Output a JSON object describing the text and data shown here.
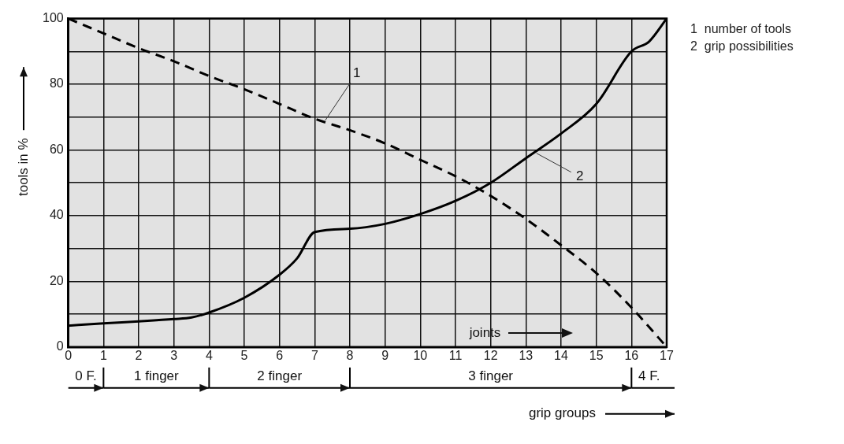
{
  "chart_data": {
    "type": "line",
    "xlabel": "grip groups",
    "ylabel": "tools in %",
    "xlim": [
      0,
      17
    ],
    "xticks": [
      0,
      1,
      2,
      3,
      4,
      5,
      6,
      7,
      8,
      9,
      10,
      11,
      12,
      13,
      14,
      15,
      16,
      17
    ],
    "ylim": [
      0,
      100
    ],
    "yticks": [
      0,
      {
        "value": 10,
        "label": null
      },
      20,
      {
        "value": 30,
        "label": null
      },
      40,
      {
        "value": 50,
        "label": null
      },
      60,
      {
        "value": 70,
        "label": null
      },
      80,
      {
        "value": 90,
        "label": null
      },
      100
    ],
    "grid": true,
    "series": [
      {
        "color": "#000000",
        "line_style": "dashed",
        "x": [
          0,
          1,
          2,
          3,
          4,
          5,
          6,
          7,
          8,
          9,
          10,
          11,
          12,
          13,
          14,
          15,
          16,
          17
        ],
        "values": [
          100,
          95.5,
          91,
          87,
          82.5,
          78.5,
          74,
          69.5,
          66,
          62,
          57,
          52,
          46,
          39,
          31,
          22.5,
          12,
          0
        ]
      },
      {
        "color": "#000000",
        "line_style": "solid",
        "x": [
          0,
          1,
          2,
          3,
          3.5,
          4,
          5,
          6,
          6.5,
          7,
          8,
          9,
          10,
          11,
          12,
          13,
          14,
          15,
          16,
          16.5,
          17
        ],
        "values": [
          6.5,
          7.2,
          7.8,
          8.5,
          9,
          10.5,
          15,
          22,
          27,
          35,
          36,
          37.5,
          40.5,
          44.5,
          50,
          57.5,
          65,
          74,
          90,
          93,
          100
        ]
      }
    ],
    "annotations": [
      {
        "text": "1",
        "x": 7.3,
        "y": 69
      },
      {
        "text": "2",
        "x": 13.3,
        "y": 59
      },
      "joints",
      "0 F.",
      "1 finger",
      "2 finger",
      "3 finger",
      "4 F.",
      "1  number of tools",
      "2  grip possibilities"
    ]
  }
}
